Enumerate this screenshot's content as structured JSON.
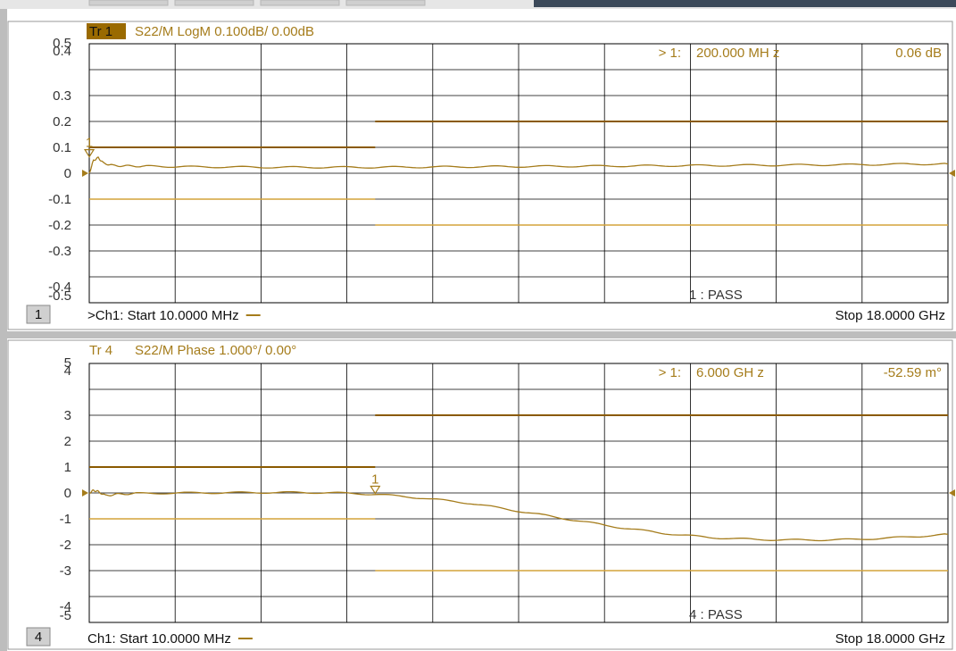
{
  "colors": {
    "trace": "#a57c1b",
    "limit": "#8a5a00",
    "lower_limit": "#d4a33a",
    "tab_active_bg": "#9a6a00",
    "tab_active_fg": "#101010",
    "grid": "#000000",
    "label": "#333333",
    "pane_bg": "#ffffff",
    "window_bg": "#dcdcdc",
    "channel_badge_bg": "#d0d0d0",
    "topbar_dark": "#3c4a5a"
  },
  "panes": [
    {
      "channel_number": "1",
      "trace_tab": "Tr 1",
      "trace_tab_active": true,
      "trace_title": "S22/M LogM 0.100dB/ 0.00dB",
      "y_ticks": [
        "0.5",
        "0.4",
        "0.3",
        "0.2",
        "0.1",
        "0",
        "-0.1",
        "-0.2",
        "-0.3",
        "-0.4",
        "-0.5"
      ],
      "marker_readout": {
        "id": "> 1:",
        "stimulus": "200.000  MH z",
        "value": "0.06 dB"
      },
      "marker_label": "1",
      "marker_position": {
        "x": 0.011,
        "y": 0.06
      },
      "limit_result": "1 : PASS",
      "footer_left": ">Ch1:  Start  10.0000 MHz",
      "footer_right": "Stop  18.0000 GHz",
      "chart_data": {
        "type": "line",
        "scale": {
          "min": -0.5,
          "max": 0.5,
          "per_div": 0.1,
          "reference": 0.0,
          "divisions": 10
        },
        "x_range_ghz": [
          0.01,
          18.0
        ],
        "series": [
          {
            "x": [
              0.01,
              0.1,
              0.2,
              0.3,
              0.5,
              0.8,
              1.2,
              2,
              3,
              4,
              5,
              6,
              7,
              8,
              9,
              10,
              11,
              12,
              13,
              14,
              15,
              16,
              17,
              18
            ],
            "y": [
              0.0,
              0.05,
              0.06,
              0.04,
              0.03,
              0.028,
              0.027,
              0.025,
              0.024,
              0.023,
              0.023,
              0.023,
              0.024,
              0.025,
              0.026,
              0.027,
              0.028,
              0.029,
              0.03,
              0.031,
              0.032,
              0.033,
              0.035,
              0.036
            ]
          }
        ],
        "limit_segments": [
          {
            "x": [
              0.01,
              6.0
            ],
            "y": 0.1,
            "kind": "upper"
          },
          {
            "x": [
              0.01,
              6.0
            ],
            "y": -0.1,
            "kind": "lower"
          },
          {
            "x": [
              6.0,
              18.0
            ],
            "y": 0.2,
            "kind": "upper"
          },
          {
            "x": [
              6.0,
              18.0
            ],
            "y": -0.2,
            "kind": "lower"
          }
        ]
      }
    },
    {
      "channel_number": "4",
      "trace_tab": "Tr 4",
      "trace_tab_active": false,
      "trace_title": "S22/M Phase 1.000°/ 0.00°",
      "y_ticks": [
        "5",
        "4",
        "3",
        "2",
        "1",
        "0",
        "-1",
        "-2",
        "-3",
        "-4",
        "-5"
      ],
      "marker_readout": {
        "id": "> 1:",
        "stimulus": "6.000  GH z",
        "value": "-52.59 m°"
      },
      "marker_label": "1",
      "marker_position": {
        "x": 6.0,
        "y": -0.05259
      },
      "limit_result": "4 : PASS",
      "footer_left": "Ch1:  Start  10.0000 MHz",
      "footer_right": "Stop  18.0000 GHz",
      "chart_data": {
        "type": "line",
        "scale": {
          "min": -5,
          "max": 5,
          "per_div": 1.0,
          "reference": 0.0,
          "divisions": 10
        },
        "x_range_ghz": [
          0.01,
          18.0
        ],
        "series": [
          {
            "x": [
              0.01,
              0.1,
              0.2,
              0.35,
              0.6,
              1,
              2,
              3,
              4,
              5,
              6,
              7,
              8,
              9,
              10,
              11,
              12,
              13,
              14,
              15,
              16,
              17,
              18
            ],
            "y": [
              0.0,
              0.1,
              0.05,
              -0.1,
              -0.05,
              -0.02,
              0.0,
              0.01,
              0.02,
              0.01,
              -0.05,
              -0.2,
              -0.4,
              -0.7,
              -1.0,
              -1.3,
              -1.55,
              -1.72,
              -1.8,
              -1.82,
              -1.8,
              -1.72,
              -1.6
            ]
          }
        ],
        "limit_segments": [
          {
            "x": [
              0.01,
              6.0
            ],
            "y": 1.0,
            "kind": "upper"
          },
          {
            "x": [
              0.01,
              6.0
            ],
            "y": -1.0,
            "kind": "lower"
          },
          {
            "x": [
              6.0,
              18.0
            ],
            "y": 3.0,
            "kind": "upper"
          },
          {
            "x": [
              6.0,
              18.0
            ],
            "y": -3.0,
            "kind": "lower"
          }
        ]
      }
    }
  ]
}
